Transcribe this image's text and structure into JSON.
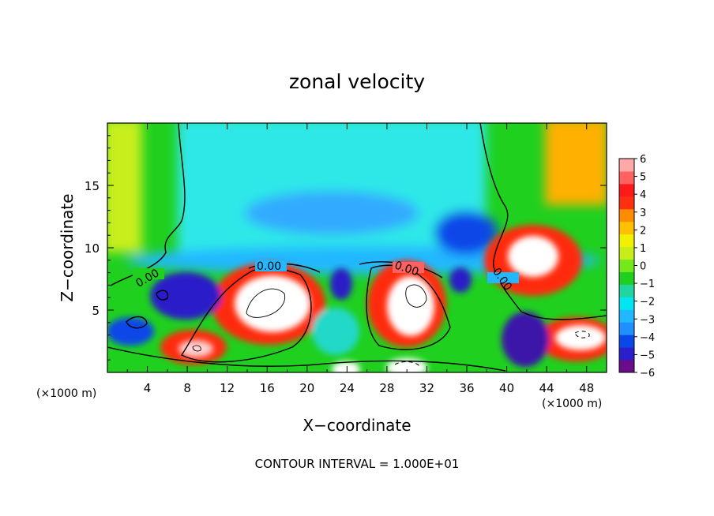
{
  "chart_data": {
    "type": "heatmap",
    "title": "zonal velocity",
    "xlabel": "X−coordinate",
    "ylabel": "Z−coordinate",
    "x_units": "(×1000 m)",
    "xlim": [
      0,
      50
    ],
    "ylim": [
      0,
      20
    ],
    "x_ticks": [
      "4",
      "8",
      "12",
      "16",
      "20",
      "24",
      "28",
      "32",
      "36",
      "40",
      "44",
      "48"
    ],
    "y_ticks": [
      "5",
      "10",
      "15"
    ],
    "color_scale": {
      "range": [
        -6,
        6
      ],
      "ticks": [
        "6",
        "5",
        "4",
        "3",
        "2",
        "1",
        "0",
        "−1",
        "−2",
        "−3",
        "−4",
        "−5",
        "−6"
      ],
      "colors": [
        "#6a0d8a",
        "#2a1fc8",
        "#0a47e8",
        "#1e90ff",
        "#22b8ff",
        "#00e6f0",
        "#20d5a0",
        "#1fd01f",
        "#74e81a",
        "#c8ee1a",
        "#f0f000",
        "#ffc000",
        "#ff8c00",
        "#ff3010",
        "#ff1a1a",
        "#ff6060",
        "#ffa8a8"
      ]
    },
    "contour_labels": [
      "0.00",
      "0.00",
      "0.00",
      "0.00"
    ],
    "features": [
      {
        "x": 2,
        "z": 17,
        "value": 2
      },
      {
        "x": 47,
        "z": 16,
        "value": 3
      },
      {
        "x": 22,
        "z": 16,
        "value": -2
      },
      {
        "x": 35,
        "z": 11,
        "value": -4
      },
      {
        "x": 15,
        "z": 5.5,
        "value": 8
      },
      {
        "x": 30.5,
        "z": 5.5,
        "value": 8
      },
      {
        "x": 43,
        "z": 8.5,
        "value": 8
      },
      {
        "x": 24.5,
        "z": 7,
        "value": -4
      },
      {
        "x": 35.5,
        "z": 7.5,
        "value": -4
      },
      {
        "x": 9,
        "z": 7,
        "value": -4
      },
      {
        "x": 46,
        "z": 2.5,
        "value": 7
      },
      {
        "x": 8.5,
        "z": 1.8,
        "value": 6
      },
      {
        "x": 3,
        "z": 2,
        "value": -4
      },
      {
        "x": 40,
        "z": 4,
        "value": -4
      }
    ],
    "footnote": "CONTOUR INTERVAL = 1.000E+01"
  }
}
